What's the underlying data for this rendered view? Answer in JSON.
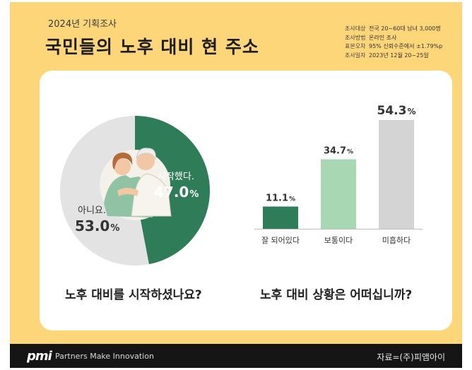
{
  "header": {
    "subtitle": "2024년 기획조사",
    "title": "국민들의 노후 대비 현 주소",
    "meta": [
      {
        "key": "조사대상",
        "value": "전국 20~60대 남녀 3,000명"
      },
      {
        "key": "조사방법",
        "value": "온라인 조사"
      },
      {
        "key": "표본오차",
        "value": "95% 신뢰수준에서 ±1.79%p"
      },
      {
        "key": "조사일자",
        "value": "2023년 12월 20~25일"
      }
    ]
  },
  "footer": {
    "logo": "pmi",
    "tagline": "Partners Make Innovation",
    "source": "자료=(주)피앰아이"
  },
  "colors": {
    "background": "#fdd67a",
    "green": "#2f7d58",
    "light_green": "#a8d7b3",
    "gray": "#d4d4d4",
    "pie_gray": "#e3e3e3"
  },
  "chart_data": [
    {
      "type": "pie",
      "question": "노후 대비를 시작하셨나요?",
      "slices": [
        {
          "label": "시작했다.",
          "value": 47.0,
          "display": "47.0",
          "color": "#2f7d58"
        },
        {
          "label": "아니요.",
          "value": 53.0,
          "display": "53.0",
          "color": "#e3e3e3"
        }
      ],
      "unit": "%"
    },
    {
      "type": "bar",
      "question": "노후 대비 상황은 어떠십니까?",
      "categories": [
        "잘 되어있다",
        "보통이다",
        "미흡하다"
      ],
      "values": [
        11.1,
        34.7,
        54.3
      ],
      "colors": [
        "#2f7d58",
        "#a8d7b3",
        "#d4d4d4"
      ],
      "unit": "%"
    }
  ]
}
